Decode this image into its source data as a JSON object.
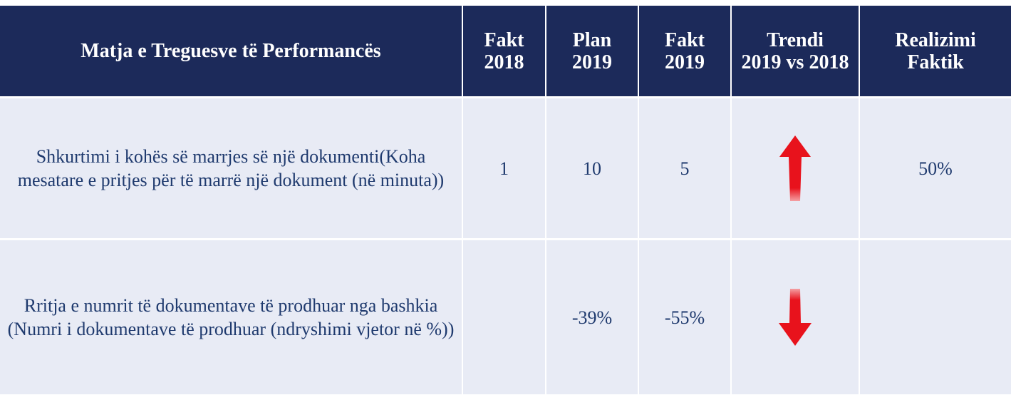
{
  "table": {
    "header": [
      "Matja e Treguesve të Performancës",
      "Fakt\n2018",
      "Plan\n2019",
      "Fakt\n2019",
      "Trendi\n2019 vs 2018",
      "Realizimi\nFaktik"
    ],
    "rows": [
      {
        "indicator": "Shkurtimi i kohës së marrjes së një dokumenti(Koha mesatare e pritjes për të marrë një dokument (në minuta))",
        "fakt_2018": "1",
        "plan_2019": "10",
        "fakt_2019": "5",
        "realizimi": "50%"
      },
      {
        "indicator": "Rritja e numrit të dokumentave të prodhuar nga bashkia (Numri i dokumentave të prodhuar (ndryshimi vjetor në %))",
        "fakt_2018": null,
        "plan_2019": "-39%",
        "fakt_2019": "-55%",
        "realizimi": null
      }
    ]
  }
}
